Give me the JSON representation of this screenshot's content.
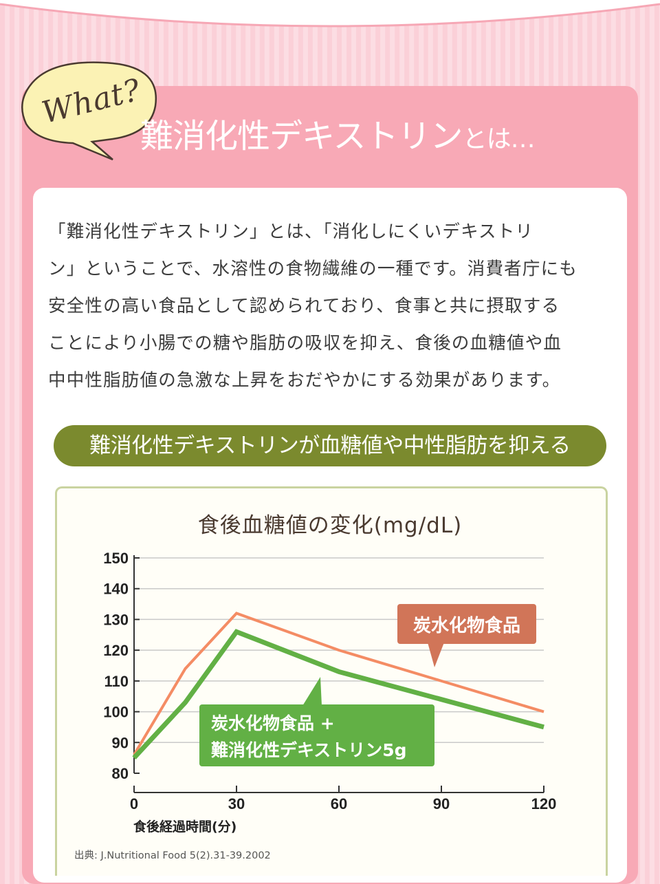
{
  "header": {
    "bubble": "What?",
    "title_main": "難消化性デキストリン",
    "title_suffix": "とは…"
  },
  "intro": {
    "lines": [
      "「難消化性デキストリン」とは、「消化しにくいデキストリ",
      "ン」ということで、水溶性の食物繊維の一種です。消費者庁にも",
      "安全性の高い食品として認められており、食事と共に摂取する",
      "ことにより小腸での糖や脂肪の吸収を抑え、食後の血糖値や血",
      "中中性脂肪値の急激な上昇をおだやかにする効果があります。"
    ]
  },
  "banner": "難消化性デキストリンが血糖値や中性脂肪を抑える",
  "chart_data": {
    "type": "line",
    "title": "食後血糖値の変化(mg/dL)",
    "xlabel": "食後経過時間(分)",
    "xticks": [
      0,
      30,
      60,
      90,
      120
    ],
    "yticks": [
      80,
      90,
      100,
      110,
      120,
      130,
      140,
      150
    ],
    "xlim": [
      0,
      120
    ],
    "ylim": [
      80,
      150
    ],
    "series": [
      {
        "name": "炭水化物食品",
        "color": "#f48c64",
        "x": [
          0,
          15,
          30,
          60,
          90,
          120
        ],
        "y": [
          86,
          114,
          132,
          120,
          110,
          100
        ]
      },
      {
        "name_lines": [
          "炭水化物食品 +",
          "難消化性デキストリン5g"
        ],
        "color": "#62b045",
        "x": [
          0,
          15,
          30,
          60,
          90,
          120
        ],
        "y": [
          85,
          103,
          126,
          113,
          104,
          95
        ]
      }
    ],
    "labels": {
      "orange_label_color": "#d17558",
      "green_label_color": "#62b045"
    }
  },
  "source": "出典: J.Nutritional Food 5(2).31-39.2002"
}
